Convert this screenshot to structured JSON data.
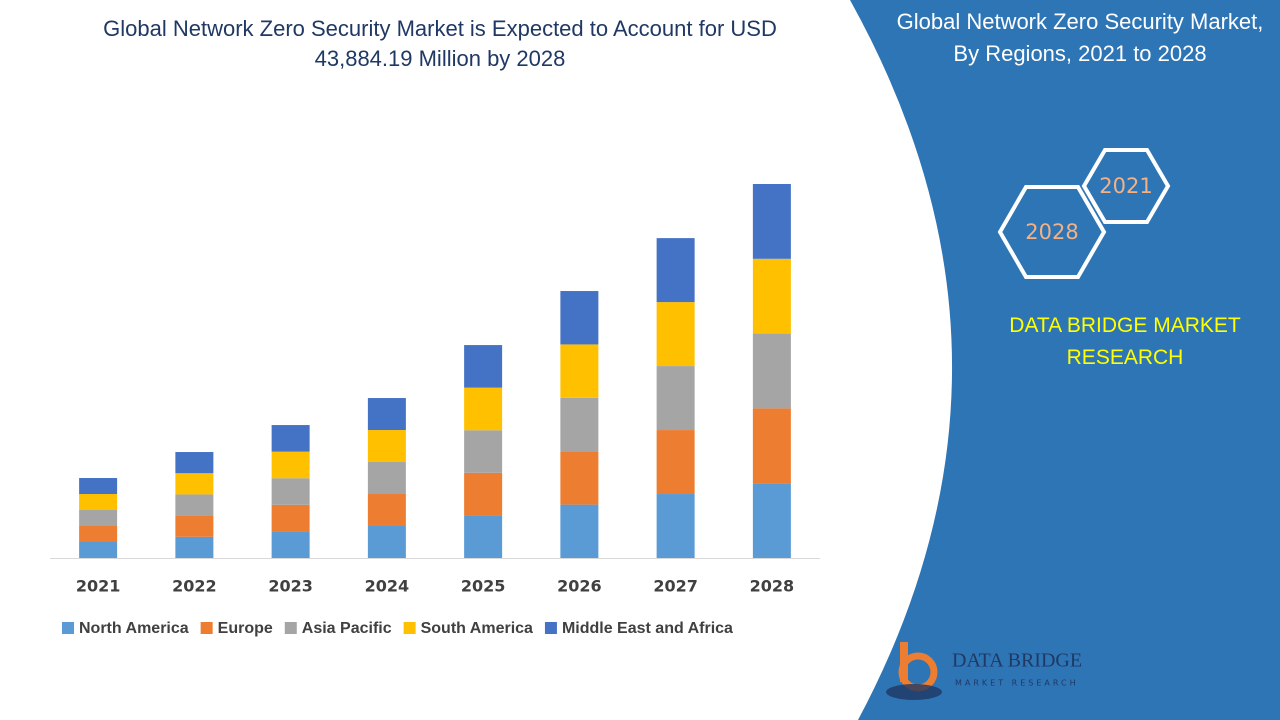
{
  "chart_data": {
    "type": "stacked-bar",
    "title": "Global Network Zero Security Market is Expected to Account for USD 43,884.19 Million by 2028",
    "categories": [
      "2021",
      "2022",
      "2023",
      "2024",
      "2025",
      "2026",
      "2027",
      "2028"
    ],
    "series": [
      {
        "name": "North America",
        "color": "#5b9bd5",
        "values": [
          1877,
          2487,
          3120,
          3754,
          4997,
          6265,
          7507,
          8777
        ]
      },
      {
        "name": "Europe",
        "color": "#ed7d31",
        "values": [
          1877,
          2487,
          3120,
          3754,
          4997,
          6265,
          7507,
          8777
        ]
      },
      {
        "name": "Asia Pacific",
        "color": "#a5a5a5",
        "values": [
          1877,
          2487,
          3120,
          3754,
          4997,
          6265,
          7507,
          8777
        ]
      },
      {
        "name": "South America",
        "color": "#ffc000",
        "values": [
          1877,
          2487,
          3120,
          3754,
          4997,
          6265,
          7507,
          8777
        ]
      },
      {
        "name": "Middle East and Africa",
        "color": "#4472c4",
        "values": [
          1877,
          2487,
          3120,
          3754,
          4997,
          6265,
          7507,
          8777
        ]
      }
    ]
  },
  "panel": {
    "title": "Global Network Zero Security Market, By Regions, 2021 to 2028",
    "badges": [
      "2021",
      "2028"
    ],
    "brand": "DATA BRIDGE MARKET RESEARCH",
    "logo_name": "DATA BRIDGE",
    "logo_sub": "MARKET RESEARCH"
  }
}
